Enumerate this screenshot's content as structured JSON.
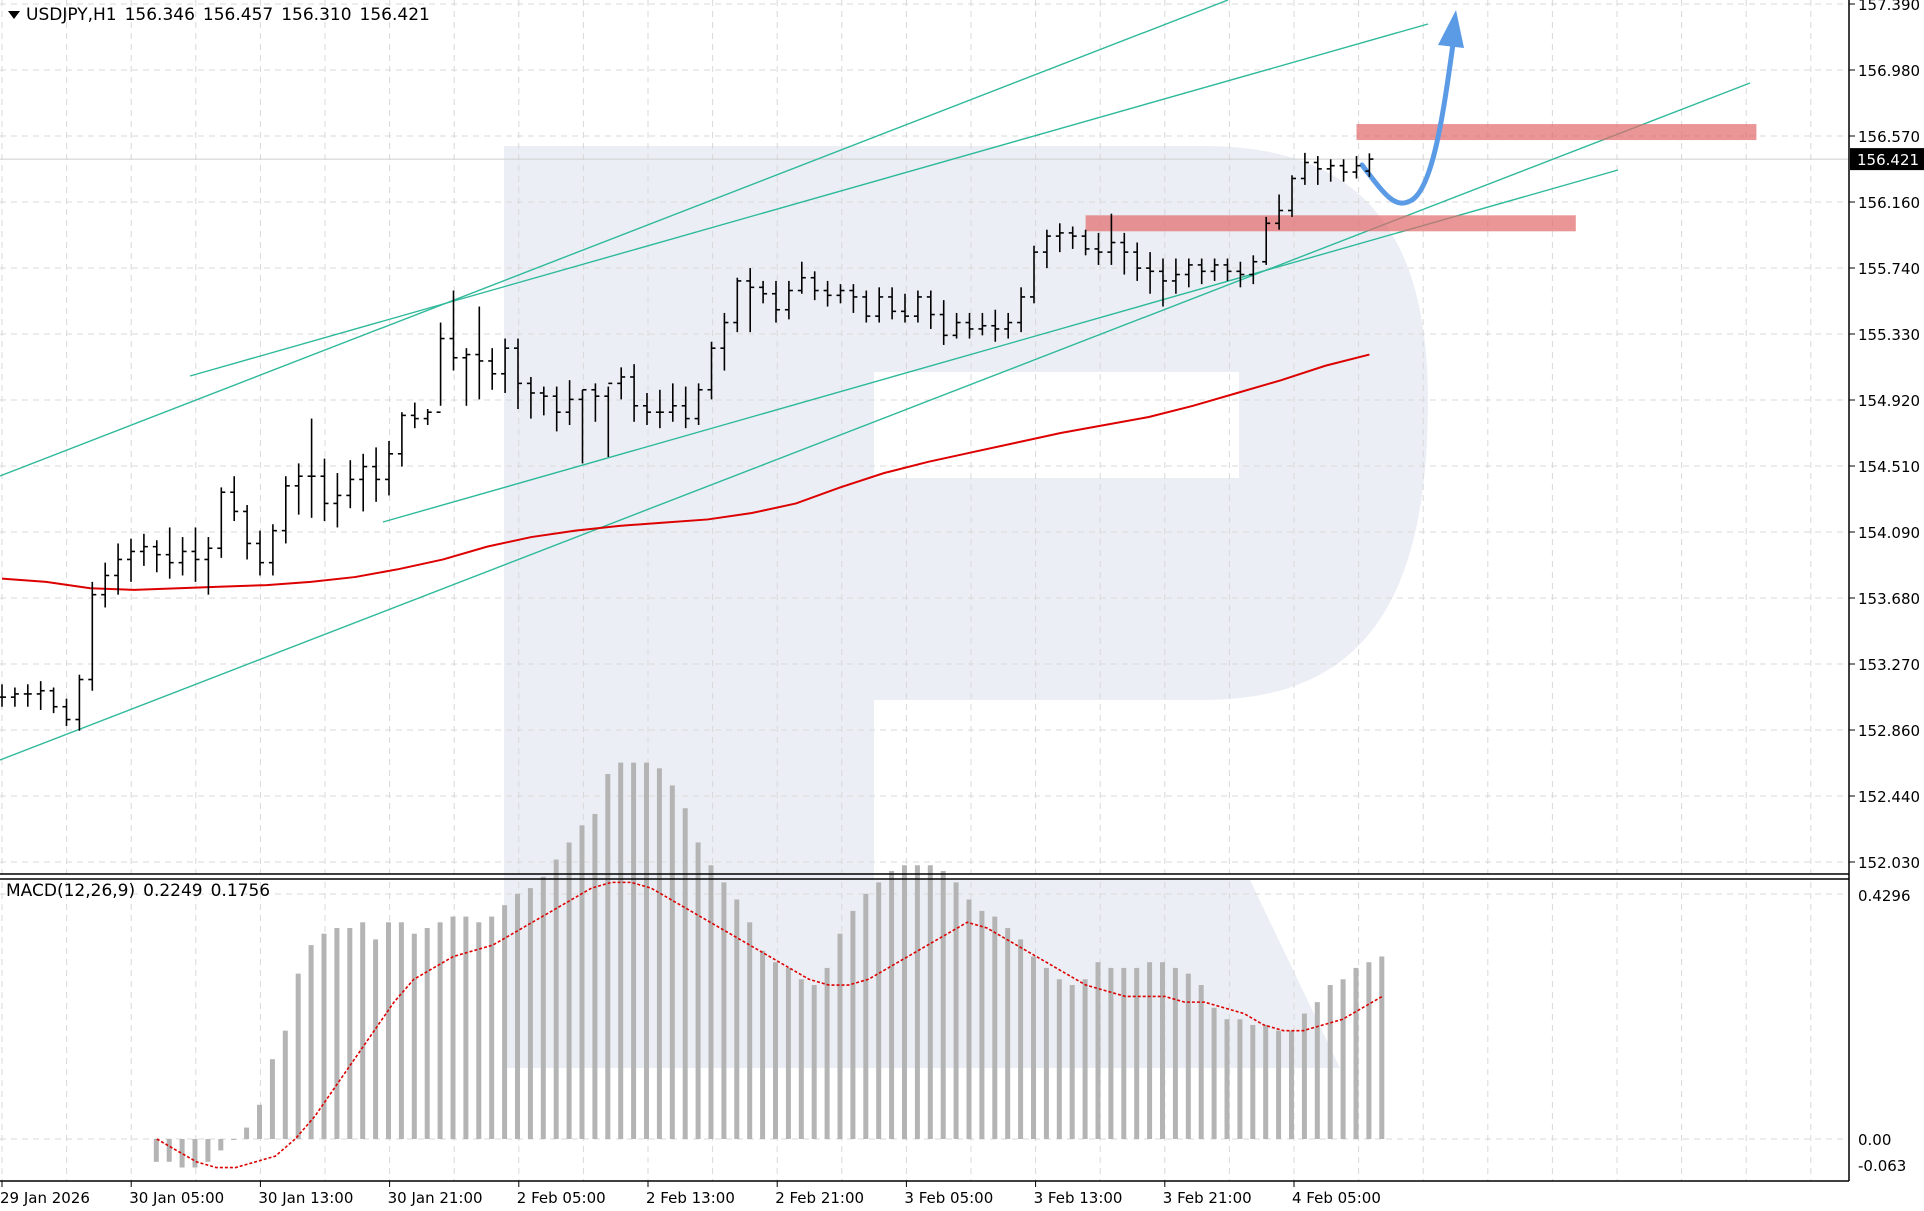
{
  "header": {
    "symbol": "USDJPY,H1",
    "open": "156.346",
    "high": "156.457",
    "low": "156.310",
    "close": "156.421"
  },
  "macd": {
    "title": "MACD(12,26,9)",
    "main": "0.2249",
    "signal": "0.1756"
  },
  "colors": {
    "bars": "#000000",
    "ma": "#dd0000",
    "channel": "#2fb99a",
    "zones": "#e26a6a",
    "arrow": "#5b9be6",
    "histogram": "#b4b4b4",
    "signal": "#dd0000",
    "grid": "#d8d8d8",
    "watermark": "#e8ecf3"
  },
  "chart_data": [
    {
      "type": "ohlc",
      "symbol": "USDJPY",
      "timeframe": "H1",
      "price_labels": [
        "157.390",
        "156.980",
        "156.570",
        "156.160",
        "155.740",
        "155.330",
        "154.920",
        "154.510",
        "154.090",
        "153.680",
        "153.270",
        "152.860",
        "152.440",
        "152.030"
      ],
      "current_price": "156.421",
      "x_labels": [
        "29 Jan 2026",
        "30 Jan 05:00",
        "30 Jan 13:00",
        "30 Jan 21:00",
        "2 Feb 05:00",
        "2 Feb 13:00",
        "2 Feb 21:00",
        "3 Feb 05:00",
        "3 Feb 13:00",
        "3 Feb 21:00",
        "4 Feb 05:00"
      ],
      "ylim": [
        152.03,
        157.39
      ],
      "grid": true,
      "bars": [
        [
          153.06,
          153.14,
          153.0,
          153.06
        ],
        [
          153.06,
          153.12,
          153.0,
          153.08
        ],
        [
          153.08,
          153.14,
          153.0,
          153.08
        ],
        [
          153.08,
          153.16,
          152.98,
          153.1
        ],
        [
          153.1,
          153.12,
          152.96,
          153.0
        ],
        [
          153.0,
          153.05,
          152.88,
          152.92
        ],
        [
          152.92,
          153.2,
          152.85,
          153.17
        ],
        [
          153.17,
          153.78,
          153.1,
          153.7
        ],
        [
          153.7,
          153.9,
          153.62,
          153.82
        ],
        [
          153.82,
          154.02,
          153.7,
          153.92
        ],
        [
          153.92,
          154.05,
          153.78,
          153.97
        ],
        [
          153.97,
          154.08,
          153.88,
          154.0
        ],
        [
          154.0,
          154.04,
          153.84,
          153.95
        ],
        [
          153.95,
          154.12,
          153.8,
          153.9
        ],
        [
          153.9,
          154.06,
          153.82,
          153.97
        ],
        [
          153.97,
          154.12,
          153.78,
          153.92
        ],
        [
          153.92,
          154.06,
          153.7,
          153.99
        ],
        [
          153.99,
          154.37,
          153.93,
          154.34
        ],
        [
          154.34,
          154.44,
          154.16,
          154.22
        ],
        [
          154.22,
          154.26,
          153.92,
          154.02
        ],
        [
          154.02,
          154.1,
          153.82,
          153.9
        ],
        [
          153.9,
          154.14,
          153.82,
          154.1
        ],
        [
          154.1,
          154.44,
          154.02,
          154.38
        ],
        [
          154.38,
          154.52,
          154.2,
          154.44
        ],
        [
          154.44,
          154.8,
          154.18,
          154.44
        ],
        [
          154.44,
          154.55,
          154.16,
          154.27
        ],
        [
          154.27,
          154.46,
          154.12,
          154.32
        ],
        [
          154.32,
          154.54,
          154.24,
          154.42
        ],
        [
          154.42,
          154.58,
          154.22,
          154.5
        ],
        [
          154.5,
          154.62,
          154.28,
          154.42
        ],
        [
          154.42,
          154.66,
          154.32,
          154.58
        ],
        [
          154.58,
          154.84,
          154.5,
          154.82
        ],
        [
          154.82,
          154.9,
          154.74,
          154.8
        ],
        [
          154.8,
          154.86,
          154.76,
          154.84
        ],
        [
          154.84,
          155.4,
          154.88,
          155.3
        ],
        [
          155.3,
          155.6,
          155.1,
          155.18
        ],
        [
          155.18,
          155.24,
          154.88,
          155.2
        ],
        [
          155.2,
          155.5,
          154.92,
          155.16
        ],
        [
          155.16,
          155.24,
          154.98,
          155.08
        ],
        [
          155.08,
          155.3,
          154.96,
          155.24
        ],
        [
          155.24,
          155.3,
          154.86,
          155.02
        ],
        [
          155.02,
          155.06,
          154.8,
          154.96
        ],
        [
          154.96,
          155.0,
          154.82,
          154.94
        ],
        [
          154.94,
          155.0,
          154.72,
          154.84
        ],
        [
          154.84,
          155.04,
          154.76,
          154.92
        ],
        [
          154.92,
          154.98,
          154.52,
          154.98
        ],
        [
          154.98,
          155.02,
          154.78,
          154.94
        ],
        [
          154.94,
          155.0,
          154.56,
          155.02
        ],
        [
          155.02,
          155.12,
          154.92,
          155.06
        ],
        [
          155.06,
          155.14,
          154.78,
          154.88
        ],
        [
          154.88,
          154.96,
          154.76,
          154.84
        ],
        [
          154.84,
          154.98,
          154.74,
          154.84
        ],
        [
          154.84,
          155.02,
          154.78,
          154.88
        ],
        [
          154.88,
          155.0,
          154.74,
          154.8
        ],
        [
          154.8,
          155.02,
          154.76,
          154.98
        ],
        [
          154.98,
          155.28,
          154.92,
          155.24
        ],
        [
          155.24,
          155.46,
          155.1,
          155.4
        ],
        [
          155.4,
          155.68,
          155.34,
          155.66
        ],
        [
          155.66,
          155.74,
          155.34,
          155.62
        ],
        [
          155.62,
          155.66,
          155.52,
          155.58
        ],
        [
          155.58,
          155.66,
          155.4,
          155.48
        ],
        [
          155.48,
          155.66,
          155.42,
          155.6
        ],
        [
          155.6,
          155.78,
          155.58,
          155.68
        ],
        [
          155.68,
          155.72,
          155.54,
          155.6
        ],
        [
          155.6,
          155.66,
          155.5,
          155.57
        ],
        [
          155.57,
          155.64,
          155.52,
          155.6
        ],
        [
          155.6,
          155.64,
          155.46,
          155.56
        ],
        [
          155.56,
          155.6,
          155.4,
          155.44
        ],
        [
          155.44,
          155.62,
          155.4,
          155.56
        ],
        [
          155.56,
          155.62,
          155.42,
          155.47
        ],
        [
          155.47,
          155.58,
          155.4,
          155.44
        ],
        [
          155.44,
          155.6,
          155.4,
          155.56
        ],
        [
          155.56,
          155.6,
          155.36,
          155.45
        ],
        [
          155.45,
          155.54,
          155.26,
          155.32
        ],
        [
          155.32,
          155.46,
          155.3,
          155.4
        ],
        [
          155.4,
          155.46,
          155.3,
          155.36
        ],
        [
          155.36,
          155.46,
          155.32,
          155.38
        ],
        [
          155.38,
          155.48,
          155.28,
          155.36
        ],
        [
          155.36,
          155.46,
          155.3,
          155.4
        ],
        [
          155.4,
          155.62,
          155.34,
          155.56
        ],
        [
          155.56,
          155.88,
          155.52,
          155.84
        ],
        [
          155.84,
          155.98,
          155.74,
          155.94
        ],
        [
          155.94,
          156.02,
          155.84,
          155.96
        ],
        [
          155.96,
          156.0,
          155.86,
          155.94
        ],
        [
          155.94,
          155.98,
          155.82,
          155.86
        ],
        [
          155.86,
          155.96,
          155.76,
          155.84
        ],
        [
          155.84,
          156.08,
          155.76,
          155.9
        ],
        [
          155.9,
          155.96,
          155.7,
          155.84
        ],
        [
          155.84,
          155.9,
          155.66,
          155.74
        ],
        [
          155.74,
          155.84,
          155.58,
          155.72
        ],
        [
          155.72,
          155.8,
          155.5,
          155.66
        ],
        [
          155.66,
          155.8,
          155.58,
          155.7
        ],
        [
          155.7,
          155.8,
          155.62,
          155.76
        ],
        [
          155.76,
          155.8,
          155.64,
          155.72
        ],
        [
          155.72,
          155.8,
          155.66,
          155.76
        ],
        [
          155.76,
          155.8,
          155.66,
          155.72
        ],
        [
          155.72,
          155.78,
          155.62,
          155.7
        ],
        [
          155.7,
          155.82,
          155.64,
          155.78
        ],
        [
          155.78,
          156.06,
          155.76,
          156.02
        ],
        [
          156.02,
          156.2,
          155.98,
          156.1
        ],
        [
          156.1,
          156.32,
          156.06,
          156.3
        ],
        [
          156.3,
          156.46,
          156.26,
          156.4
        ],
        [
          156.4,
          156.44,
          156.26,
          156.36
        ],
        [
          156.36,
          156.42,
          156.28,
          156.38
        ],
        [
          156.38,
          156.42,
          156.28,
          156.34
        ],
        [
          156.34,
          156.44,
          156.3,
          156.38
        ],
        [
          156.346,
          156.457,
          156.31,
          156.421
        ]
      ],
      "ma": [
        153.8,
        153.78,
        153.74,
        153.73,
        153.74,
        153.75,
        153.76,
        153.78,
        153.81,
        153.86,
        153.92,
        154.0,
        154.06,
        154.1,
        154.13,
        154.15,
        154.17,
        154.21,
        154.27,
        154.37,
        154.46,
        154.53,
        154.59,
        154.65,
        154.71,
        154.76,
        154.81,
        154.88,
        154.96,
        155.04,
        155.13,
        155.2
      ],
      "resistance_zones": [
        {
          "from": 156.54,
          "to": 156.64,
          "start_bar": 105,
          "end_bar": 136
        },
        {
          "from": 155.97,
          "to": 156.07,
          "start_bar": 84,
          "end_bar": 122
        }
      ],
      "forecast_arrow": "up"
    },
    {
      "type": "bar",
      "name": "MACD(12,26,9)",
      "labels": [
        "0.4296",
        "0.00",
        "-0.063"
      ],
      "ylim": [
        -0.063,
        0.4296
      ],
      "histogram": [
        -0.04,
        -0.04,
        -0.05,
        -0.05,
        -0.04,
        -0.02,
        0.0,
        0.02,
        0.06,
        0.14,
        0.19,
        0.29,
        0.34,
        0.36,
        0.37,
        0.37,
        0.38,
        0.35,
        0.38,
        0.38,
        0.36,
        0.37,
        0.38,
        0.39,
        0.39,
        0.38,
        0.39,
        0.41,
        0.43,
        0.44,
        0.46,
        0.49,
        0.52,
        0.55,
        0.57,
        0.64,
        0.66,
        0.66,
        0.66,
        0.65,
        0.62,
        0.58,
        0.52,
        0.48,
        0.45,
        0.42,
        0.38,
        0.33,
        0.31,
        0.3,
        0.28,
        0.27,
        0.3,
        0.36,
        0.4,
        0.43,
        0.45,
        0.47,
        0.48,
        0.48,
        0.48,
        0.47,
        0.45,
        0.42,
        0.4,
        0.39,
        0.37,
        0.35,
        0.32,
        0.3,
        0.28,
        0.27,
        0.28,
        0.31,
        0.3,
        0.3,
        0.3,
        0.31,
        0.31,
        0.3,
        0.29,
        0.27,
        0.23,
        0.21,
        0.21,
        0.2,
        0.2,
        0.19,
        0.19,
        0.22,
        0.24,
        0.27,
        0.28,
        0.3,
        0.31,
        0.32
      ],
      "signal": [
        0.0,
        -0.02,
        -0.04,
        -0.05,
        -0.05,
        -0.04,
        -0.03,
        0.0,
        0.04,
        0.09,
        0.14,
        0.19,
        0.24,
        0.28,
        0.3,
        0.32,
        0.33,
        0.34,
        0.36,
        0.38,
        0.4,
        0.42,
        0.44,
        0.45,
        0.45,
        0.44,
        0.42,
        0.4,
        0.38,
        0.36,
        0.34,
        0.32,
        0.3,
        0.28,
        0.27,
        0.27,
        0.28,
        0.3,
        0.32,
        0.34,
        0.36,
        0.38,
        0.37,
        0.35,
        0.33,
        0.31,
        0.29,
        0.27,
        0.26,
        0.25,
        0.25,
        0.25,
        0.24,
        0.24,
        0.23,
        0.22,
        0.2,
        0.19,
        0.19,
        0.2,
        0.21,
        0.23,
        0.25
      ]
    }
  ]
}
